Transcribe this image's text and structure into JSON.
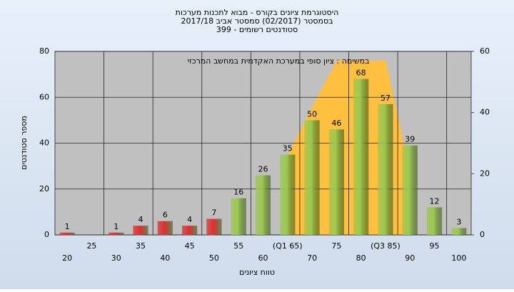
{
  "chart_data": {
    "type": "bar",
    "title": [
      "היסטוגרמת ציונים בקורס - מבוא לתכנות מערכות",
      "בסמסטר  (02/2017)  סמסטר אביב 2017/18",
      "סטודנטים רשומים - 399"
    ],
    "annotation": "במשימה : ציון סופי במערכת האקדמית במחשב המרכזי",
    "x_label": "טווח ציונים",
    "y_label": "מספר סטודנטים",
    "categories": [
      "20",
      "25",
      "30",
      "35",
      "40",
      "45",
      "50",
      "55",
      "60",
      "(Q1 65)",
      "70",
      "75",
      "80",
      "(Q3 85)",
      "90",
      "95",
      "100"
    ],
    "series": [
      {
        "values": [
          1,
          null,
          1,
          4,
          6,
          4,
          7,
          16,
          26,
          35,
          50,
          46,
          68,
          57,
          39,
          12,
          3
        ],
        "colors": [
          "#e03030",
          "#e03030",
          "#e03030",
          "#e03030",
          "#e03030",
          "#e03030",
          "#e03030",
          "#9cc850",
          "#9cc850",
          "#9cc850",
          "#9cc850",
          "#9cc850",
          "#9cc850",
          "#9cc850",
          "#9cc850",
          "#9cc850",
          "#9cc850"
        ]
      },
      {
        "type": "area",
        "axis": "y2",
        "color": "#ffc040",
        "values": [
          null,
          null,
          null,
          null,
          null,
          null,
          null,
          null,
          null,
          26,
          42,
          57,
          57,
          57,
          20,
          null,
          null
        ]
      }
    ],
    "ylim": [
      0,
      80
    ],
    "yticks": [
      0,
      20,
      40,
      60,
      80
    ],
    "y2lim": [
      0,
      60
    ],
    "y2ticks": [
      0,
      20,
      40,
      60
    ],
    "grid": true
  }
}
